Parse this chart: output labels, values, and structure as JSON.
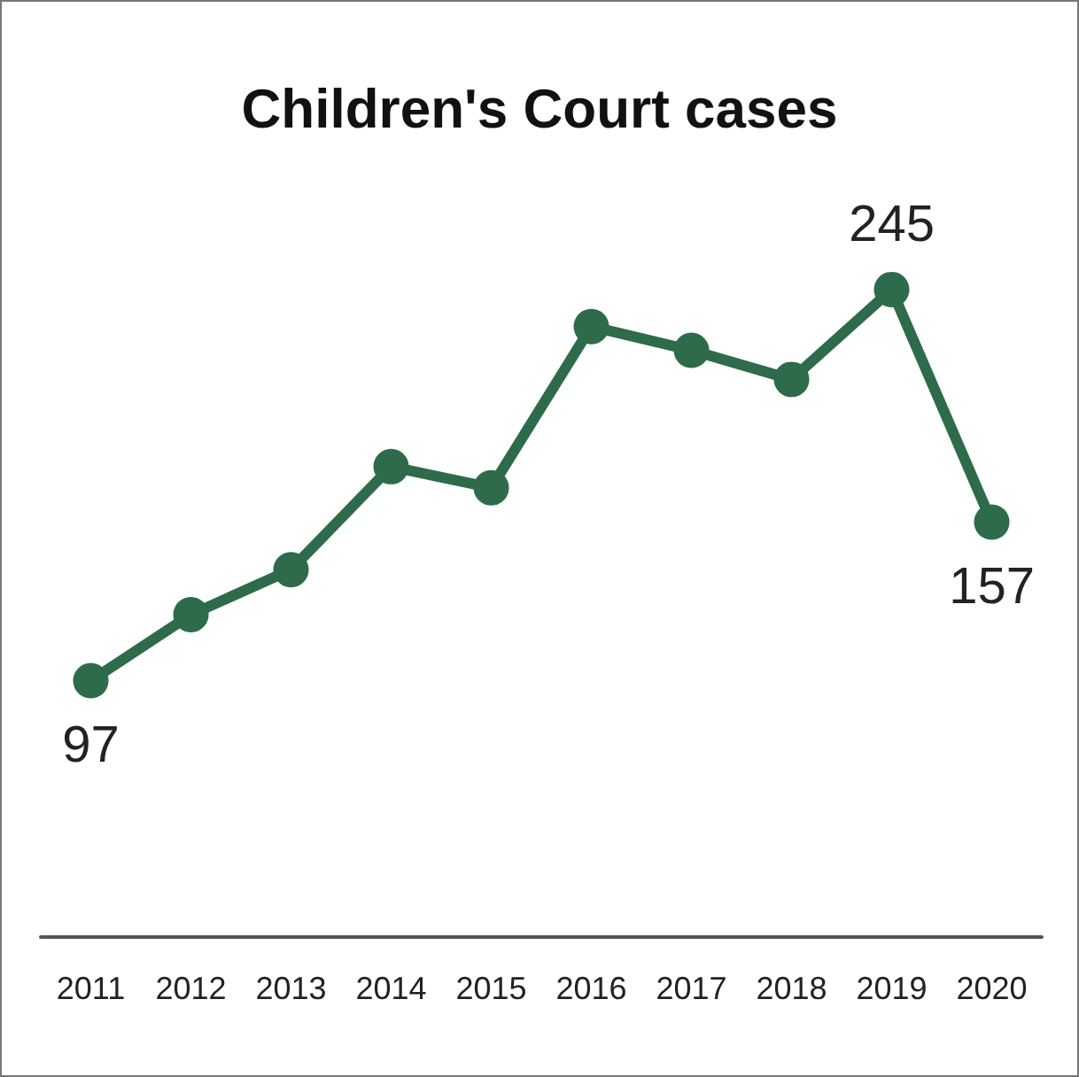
{
  "chart_data": {
    "type": "line",
    "title": "Children's Court cases",
    "categories": [
      "2011",
      "2012",
      "2013",
      "2014",
      "2015",
      "2016",
      "2017",
      "2018",
      "2019",
      "2020"
    ],
    "values": [
      97,
      122,
      139,
      178,
      170,
      231,
      222,
      211,
      245,
      157
    ],
    "value_labels": [
      "97",
      null,
      null,
      null,
      null,
      null,
      null,
      null,
      "245",
      "157"
    ],
    "color": "#2e6b4a",
    "tick_labels": "x",
    "grid": false,
    "marker": "circle",
    "line_style": "solid"
  }
}
